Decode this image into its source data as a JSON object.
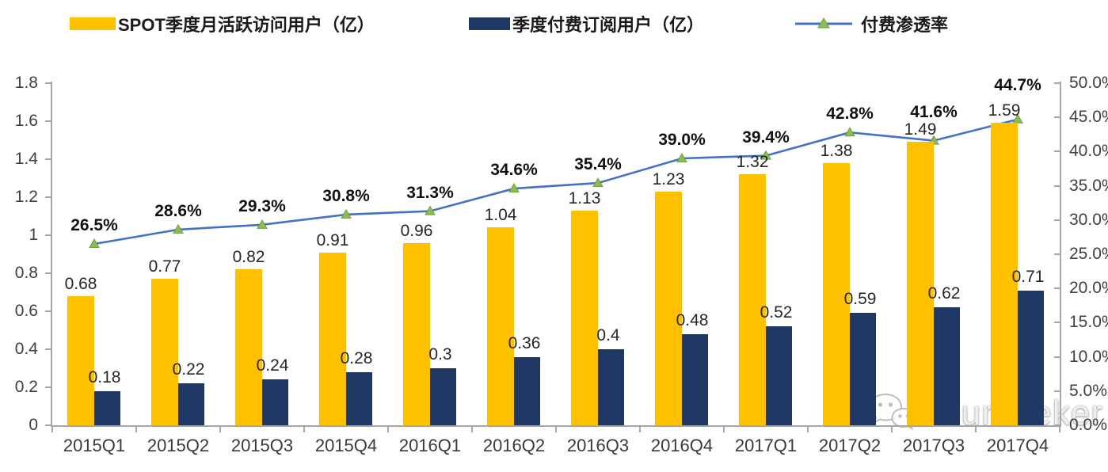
{
  "legend": {
    "mau": "SPOT季度月活跃访问用户（亿）",
    "subs": "季度付费订阅用户（亿）",
    "penetration": "付费渗透率"
  },
  "watermark": {
    "text": "Yourseeker"
  },
  "colors": {
    "mau": "#FFC000",
    "subs": "#1F3864",
    "line": "#4472C4",
    "marker": "#8FBC52",
    "marker_edge": "#6FA03A",
    "axis": "#A6A6A6"
  },
  "chart_data": {
    "type": "bar",
    "title": "",
    "xlabel": "",
    "ylabel_left": "",
    "ylabel_right": "",
    "grid": false,
    "legend_position": "top",
    "categories": [
      "2015Q1",
      "2015Q2",
      "2015Q3",
      "2015Q4",
      "2016Q1",
      "2016Q2",
      "2016Q3",
      "2016Q4",
      "2017Q1",
      "2017Q2",
      "2017Q3",
      "2017Q4"
    ],
    "series": [
      {
        "name": "SPOT季度月活跃访问用户（亿）",
        "type": "bar",
        "axis": "left",
        "color": "#FFC000",
        "values": [
          0.68,
          0.77,
          0.82,
          0.91,
          0.96,
          1.04,
          1.13,
          1.23,
          1.32,
          1.38,
          1.49,
          1.59
        ]
      },
      {
        "name": "季度付费订阅用户（亿）",
        "type": "bar",
        "axis": "left",
        "color": "#1F3864",
        "values": [
          0.18,
          0.22,
          0.24,
          0.28,
          0.3,
          0.36,
          0.4,
          0.48,
          0.52,
          0.59,
          0.62,
          0.71
        ]
      },
      {
        "name": "付费渗透率",
        "type": "line",
        "axis": "right",
        "color": "#4472C4",
        "values": [
          26.5,
          28.6,
          29.3,
          30.8,
          31.3,
          34.6,
          35.4,
          39.0,
          39.4,
          42.8,
          41.6,
          44.7
        ]
      }
    ],
    "left_axis": {
      "min": 0,
      "max": 1.8,
      "tick_labels": [
        "0",
        "0.2",
        "0.4",
        "0.6",
        "0.8",
        "1",
        "1.2",
        "1.4",
        "1.6",
        "1.8"
      ]
    },
    "right_axis": {
      "min": 0,
      "max": 50,
      "tick_labels": [
        "0.0%",
        "5.0%",
        "10.0%",
        "15.0%",
        "20.0%",
        "25.0%",
        "30.0%",
        "35.0%",
        "40.0%",
        "45.0%",
        "50.0%"
      ]
    }
  }
}
